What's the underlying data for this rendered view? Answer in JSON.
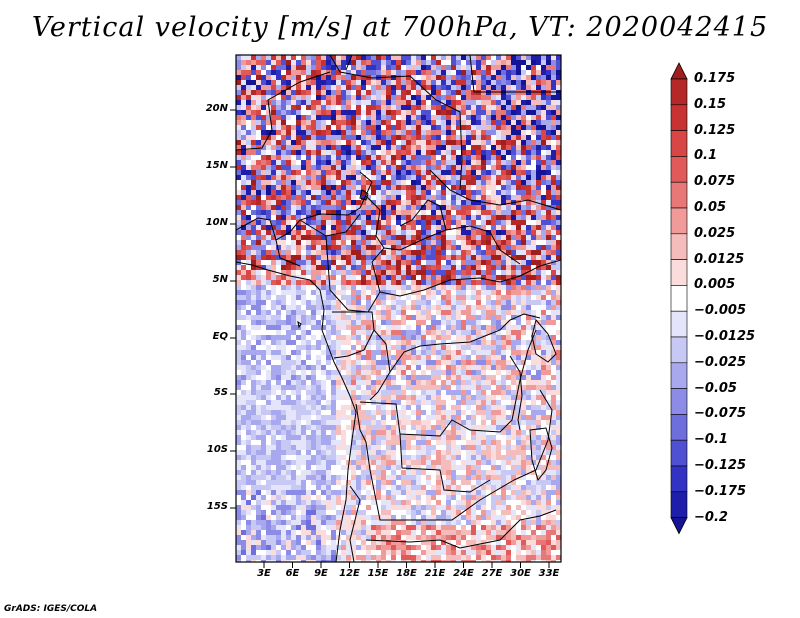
{
  "title": "Vertical velocity [m/s] at 700hPa, VT: 2020042415",
  "latitude_labels": [
    "20N",
    "15N",
    "10N",
    "5N",
    "EQ",
    "5S",
    "10S",
    "15S"
  ],
  "longitude_labels": [
    "3E",
    "6E",
    "9E",
    "12E",
    "15E",
    "18E",
    "21E",
    "24E",
    "27E",
    "30E",
    "33E"
  ],
  "colorbar": {
    "labels": [
      "0.175",
      "0.15",
      "0.125",
      "0.1",
      "0.075",
      "0.05",
      "0.025",
      "0.0125",
      "0.005",
      "−0.005",
      "−0.0125",
      "−0.025",
      "−0.05",
      "−0.075",
      "−0.1",
      "−0.125",
      "−0.175",
      "−0.2"
    ],
    "colors": [
      "#a01e1e",
      "#b42828",
      "#c83232",
      "#d84646",
      "#e05a5a",
      "#e87878",
      "#f09a9a",
      "#f5bcbc",
      "#fadcdc",
      "#ffffff",
      "#e4e4fa",
      "#c8c8f5",
      "#a8a8ee",
      "#8c8ce6",
      "#6e6edc",
      "#5050d2",
      "#3232c3",
      "#1e1eaa",
      "#141496"
    ]
  },
  "credit": "GrADS: IGES/COLA"
}
